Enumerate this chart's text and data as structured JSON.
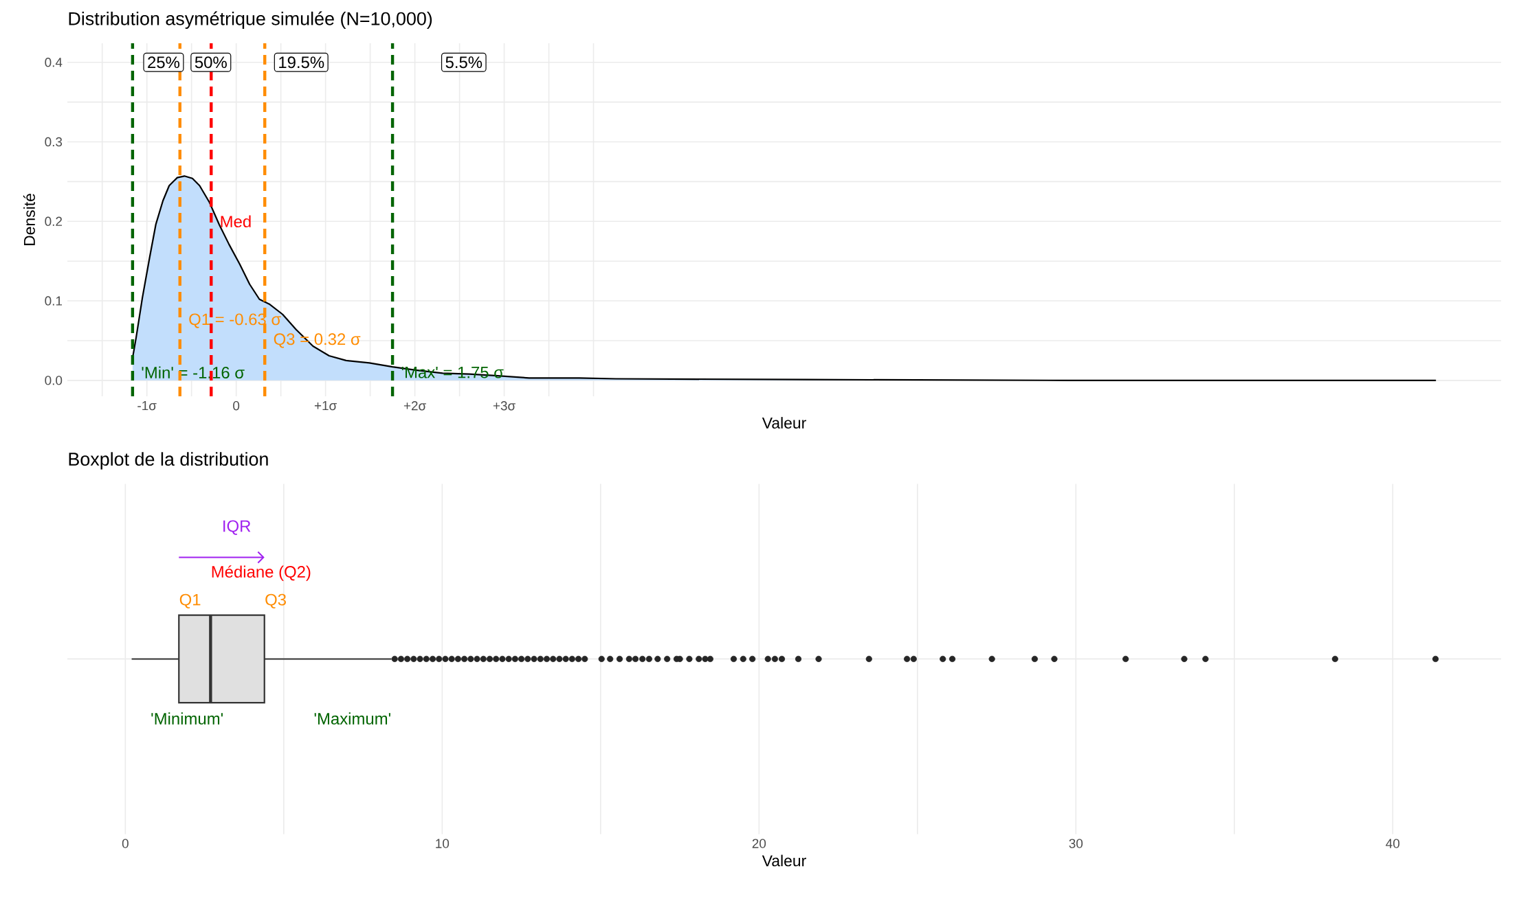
{
  "chart_data": [
    {
      "type": "area",
      "title": "Distribution asymétrique simulée (N=10,000)",
      "xlabel": "Valeur",
      "ylabel": "Densité",
      "x": [
        -1.16,
        -1.12,
        -1.05,
        -0.97,
        -0.9,
        -0.82,
        -0.75,
        -0.66,
        -0.58,
        -0.49,
        -0.41,
        -0.3,
        -0.19,
        -0.08,
        0.04,
        0.15,
        0.26,
        0.37,
        0.52,
        0.67,
        0.86,
        1.04,
        1.23,
        1.49,
        1.75,
        2.01,
        2.31,
        2.61,
        2.9,
        3.28,
        3.84,
        4.25,
        6.39,
        9.33,
        13.43
      ],
      "series": [
        {
          "color": "#c2defc",
          "values": [
            0.028,
            0.054,
            0.104,
            0.154,
            0.196,
            0.226,
            0.245,
            0.255,
            0.257,
            0.254,
            0.245,
            0.224,
            0.196,
            0.171,
            0.146,
            0.121,
            0.102,
            0.096,
            0.083,
            0.064,
            0.043,
            0.031,
            0.025,
            0.022,
            0.017,
            0.013,
            0.009,
            0.008,
            0.006,
            0.003,
            0.003,
            0.002,
            0.001,
            0.0,
            0.0
          ]
        }
      ],
      "xlim": [
        -1.89,
        14.16
      ],
      "ylim": [
        -0.02,
        0.424
      ],
      "xticks": [
        {
          "value": -1.5,
          "label": null
        },
        {
          "value": -1,
          "label": "-1σ"
        },
        {
          "value": -0.5,
          "label": null
        },
        0,
        {
          "value": 0.5,
          "label": null
        },
        {
          "value": 1,
          "label": "+1σ"
        },
        {
          "value": 1.5,
          "label": null
        },
        {
          "value": 2,
          "label": "+2σ"
        },
        {
          "value": 2.5,
          "label": null
        },
        {
          "value": 3,
          "label": "+3σ"
        },
        {
          "value": 3.5,
          "label": null
        },
        {
          "value": 4,
          "label": null
        }
      ],
      "yticks": [
        {
          "value": 0,
          "label": "0.0"
        },
        {
          "value": 0.05,
          "label": null
        },
        0.1,
        {
          "value": 0.15,
          "label": null
        },
        0.2,
        {
          "value": 0.25,
          "label": null
        },
        0.3,
        {
          "value": 0.35,
          "label": null
        },
        0.4
      ],
      "grid": true,
      "ref_lines": [
        {
          "axis": "x",
          "value": -1.16,
          "label": "'Min' = -1.16 σ",
          "color": "#006400",
          "line_style": "dashed"
        },
        {
          "axis": "x",
          "value": -0.63,
          "label": "Q1 = -0.63 σ",
          "color": "#ff8c00",
          "line_style": "dashed"
        },
        {
          "axis": "x",
          "value": -0.28,
          "label": "Med",
          "color": "#ff0000",
          "line_style": "dashed"
        },
        {
          "axis": "x",
          "value": 0.32,
          "label": "Q3 = 0.32 σ",
          "color": "#ff8c00",
          "line_style": "dashed"
        },
        {
          "axis": "x",
          "value": 1.75,
          "label": "'Max' = 1.75 σ",
          "color": "#006400",
          "line_style": "dashed"
        }
      ],
      "annotations": [
        "25%",
        "50%",
        "19.5%",
        "5.5%"
      ]
    },
    {
      "type": "box",
      "title": "Boxplot de la distribution",
      "xlabel": "Valeur",
      "categories": [
        null
      ],
      "orientation": "horizontal",
      "color": "#e0e0e0",
      "boxes": [
        {
          "low": 0.2,
          "q1": 1.69,
          "median": 2.69,
          "q3": 4.39,
          "high": 8.4,
          "outliers": [
            8.5,
            8.7,
            8.9,
            9.1,
            9.3,
            9.5,
            9.7,
            9.9,
            10.1,
            10.3,
            10.5,
            10.7,
            10.9,
            11.1,
            11.3,
            11.5,
            11.7,
            11.9,
            12.1,
            12.3,
            12.5,
            12.7,
            12.9,
            13.1,
            13.3,
            13.5,
            13.7,
            13.9,
            14.1,
            14.3,
            14.5,
            15.03,
            15.3,
            15.6,
            15.9,
            16.1,
            16.32,
            16.53,
            16.8,
            17.1,
            17.4,
            17.5,
            17.8,
            18.1,
            18.3,
            18.46,
            19.2,
            19.5,
            19.79,
            20.28,
            20.5,
            20.72,
            21.24,
            21.88,
            23.47,
            24.67,
            24.88,
            25.8,
            26.1,
            27.35,
            28.7,
            29.32,
            31.57,
            33.42,
            34.09,
            38.18,
            41.35
          ]
        }
      ],
      "xlim": [
        -1.83,
        43.42
      ],
      "xticks": [
        {
          "value": 0,
          "label": "0"
        },
        {
          "value": 5,
          "label": null
        },
        {
          "value": 10,
          "label": "10"
        },
        {
          "value": 15,
          "label": null
        },
        {
          "value": 20,
          "label": "20"
        },
        {
          "value": 25,
          "label": null
        },
        {
          "value": 30,
          "label": "30"
        },
        {
          "value": 35,
          "label": null
        },
        {
          "value": 40,
          "label": "40"
        }
      ],
      "grid": true,
      "annotations": [
        "IQR",
        "Médiane (Q2)",
        "Q1",
        "Q3",
        "'Minimum'",
        "'Maximum'"
      ]
    }
  ]
}
